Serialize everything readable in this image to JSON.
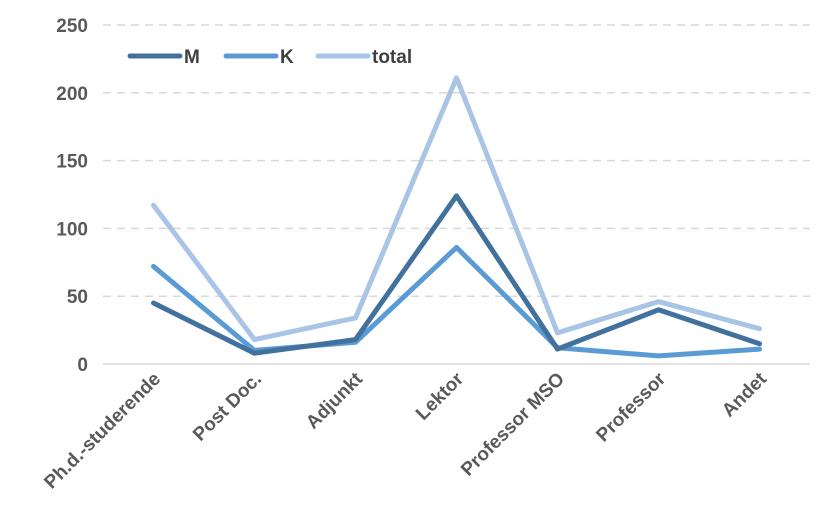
{
  "chart_data": {
    "type": "line",
    "categories": [
      "Ph.d.-studerende",
      "Post Doc.",
      "Adjunkt",
      "Lektor",
      "Professor MSO",
      "Professor",
      "Andet"
    ],
    "series": [
      {
        "name": "M",
        "color": "#41719c",
        "values": [
          45,
          8,
          18,
          124,
          11,
          40,
          15
        ]
      },
      {
        "name": "K",
        "color": "#5b9bd5",
        "values": [
          72,
          10,
          16,
          86,
          12,
          6,
          11
        ]
      },
      {
        "name": "total",
        "color": "#a9c4e4",
        "values": [
          117,
          18,
          34,
          211,
          23,
          46,
          26
        ]
      }
    ],
    "ylim": [
      0,
      250
    ],
    "yticks": [
      "0",
      "50",
      "100",
      "150",
      "200",
      "250"
    ],
    "grid": true,
    "legend": "top-left"
  }
}
